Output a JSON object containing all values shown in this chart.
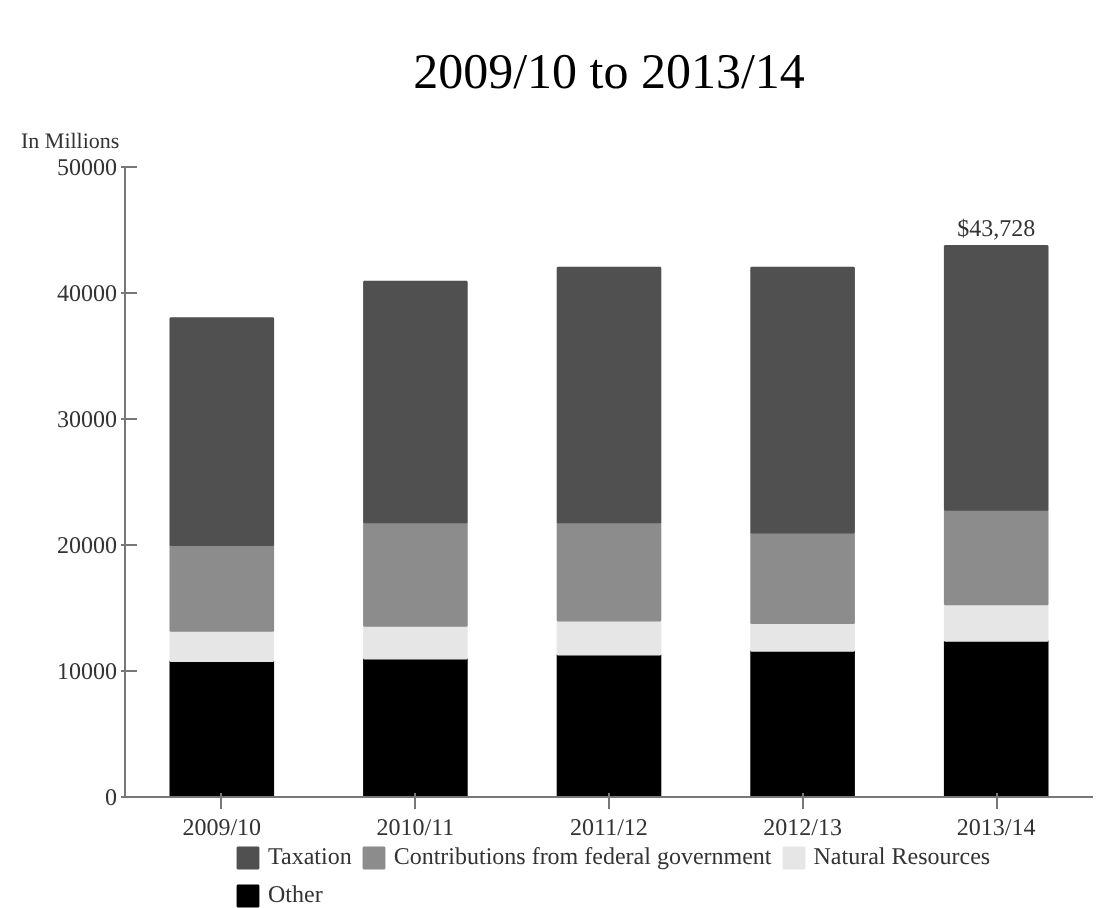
{
  "chart_data": {
    "type": "bar",
    "title": "2009/10 to 2013/14",
    "ylabel": "In Millions",
    "categories": [
      "2009/10",
      "2010/11",
      "2011/12",
      "2012/13",
      "2013/14"
    ],
    "stacked": true,
    "series": [
      {
        "name": "Other",
        "color": "#000000",
        "values": [
          10800,
          11000,
          11300,
          11600,
          12400
        ]
      },
      {
        "name": "Natural Resources",
        "color": "#e6e6e6",
        "values": [
          2400,
          2600,
          2700,
          2200,
          2900
        ]
      },
      {
        "name": "Contributions from federal government",
        "color": "#8c8c8c",
        "values": [
          6800,
          8200,
          7800,
          7200,
          7500
        ]
      },
      {
        "name": "Taxation",
        "color": "#505050",
        "values": [
          18000,
          19100,
          20200,
          21000,
          20928
        ]
      }
    ],
    "totals": [
      null,
      null,
      null,
      null,
      "$43,728"
    ],
    "ylim": [
      0,
      50000
    ],
    "yticks": [
      0,
      10000,
      20000,
      30000,
      40000,
      50000
    ],
    "legend": "bottom"
  }
}
